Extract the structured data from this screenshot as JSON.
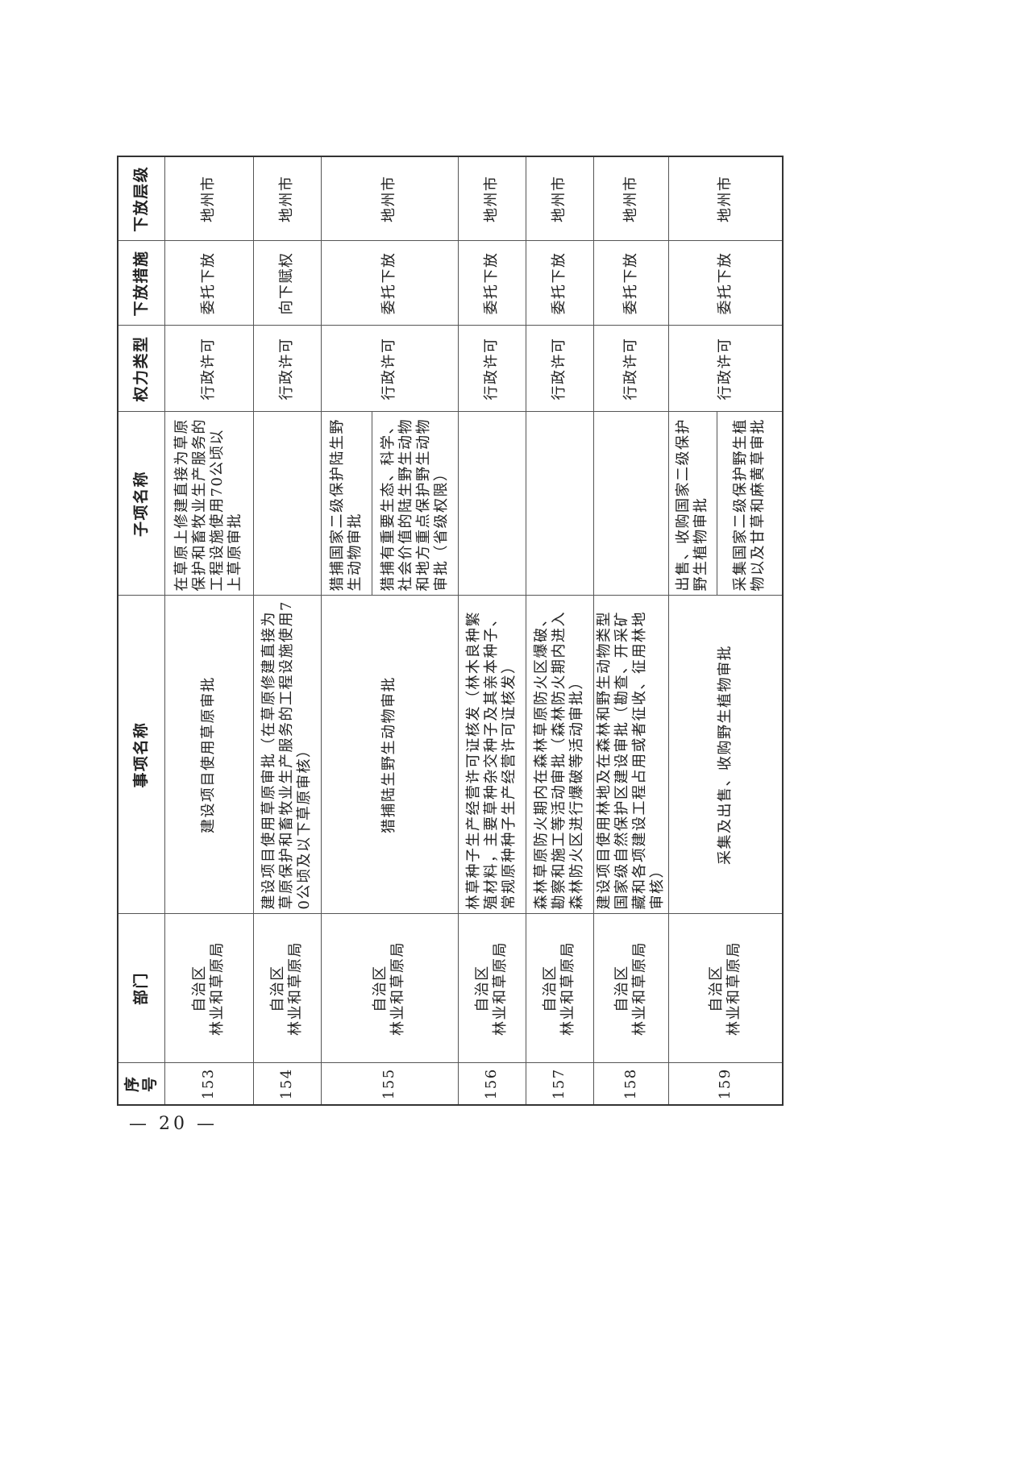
{
  "table": {
    "headers": [
      "序号",
      "部门",
      "事项名称",
      "子项名称",
      "权力类型",
      "下放措施",
      "下放层级"
    ],
    "rows": [
      {
        "no": "153",
        "dept_1": "自治区",
        "dept_2": "林业和草原局",
        "item": "建设项目使用草原审批",
        "subs": [
          "在草原上修建直接为草原保护和畜牧业生产服务的工程设施使用70公顷以上草原审批"
        ],
        "type": "行政许可",
        "measure": "委托下放",
        "level": "地州市"
      },
      {
        "no": "154",
        "dept_1": "自治区",
        "dept_2": "林业和草原局",
        "item": "建设项目使用草原审批（在草原修建直接为草原保护和畜牧业生产服务的工程设施使用70公顷及以下草原审核）",
        "subs": [
          ""
        ],
        "type": "行政许可",
        "measure": "向下赋权",
        "level": "地州市"
      },
      {
        "no": "155",
        "dept_1": "自治区",
        "dept_2": "林业和草原局",
        "item": "猎捕陆生野生动物审批",
        "subs": [
          "猎捕国家二级保护陆生野生动物审批",
          "猎捕有重要生态、科学、社会价值的陆生野生动物和地方重点保护野生动物审批（省级权限）"
        ],
        "type": "行政许可",
        "measure": "委托下放",
        "level": "地州市"
      },
      {
        "no": "156",
        "dept_1": "自治区",
        "dept_2": "林业和草原局",
        "item": "林草种子生产经营许可证核发（林木良种繁殖材料，主要草种杂交种子及其亲本种子、常规原种种子生产经营许可证核发）",
        "subs": [
          ""
        ],
        "type": "行政许可",
        "measure": "委托下放",
        "level": "地州市"
      },
      {
        "no": "157",
        "dept_1": "自治区",
        "dept_2": "林业和草原局",
        "item": "森林草原防火期内在森林草原防火区爆破、勘察和施工等活动审批（森林防火期内进入森林防火区进行爆破等活动审批）",
        "subs": [
          ""
        ],
        "type": "行政许可",
        "measure": "委托下放",
        "level": "地州市"
      },
      {
        "no": "158",
        "dept_1": "自治区",
        "dept_2": "林业和草原局",
        "item": "建设项目使用林地及在森林和野生动物类型国家级自然保护区建设审批（勘查、开采矿藏和各项建设工程占用或者征收、征用林地审核）",
        "subs": [
          ""
        ],
        "type": "行政许可",
        "measure": "委托下放",
        "level": "地州市"
      },
      {
        "no": "159",
        "dept_1": "自治区",
        "dept_2": "林业和草原局",
        "item": "采集及出售、收购野生植物审批",
        "subs": [
          "出售、收购国家二级保护野生植物审批",
          "采集国家二级保护野生植物以及甘草和麻黄草审批"
        ],
        "type": "行政许可",
        "measure": "委托下放",
        "level": "地州市"
      }
    ]
  },
  "footer": {
    "page": "— 20 —"
  }
}
